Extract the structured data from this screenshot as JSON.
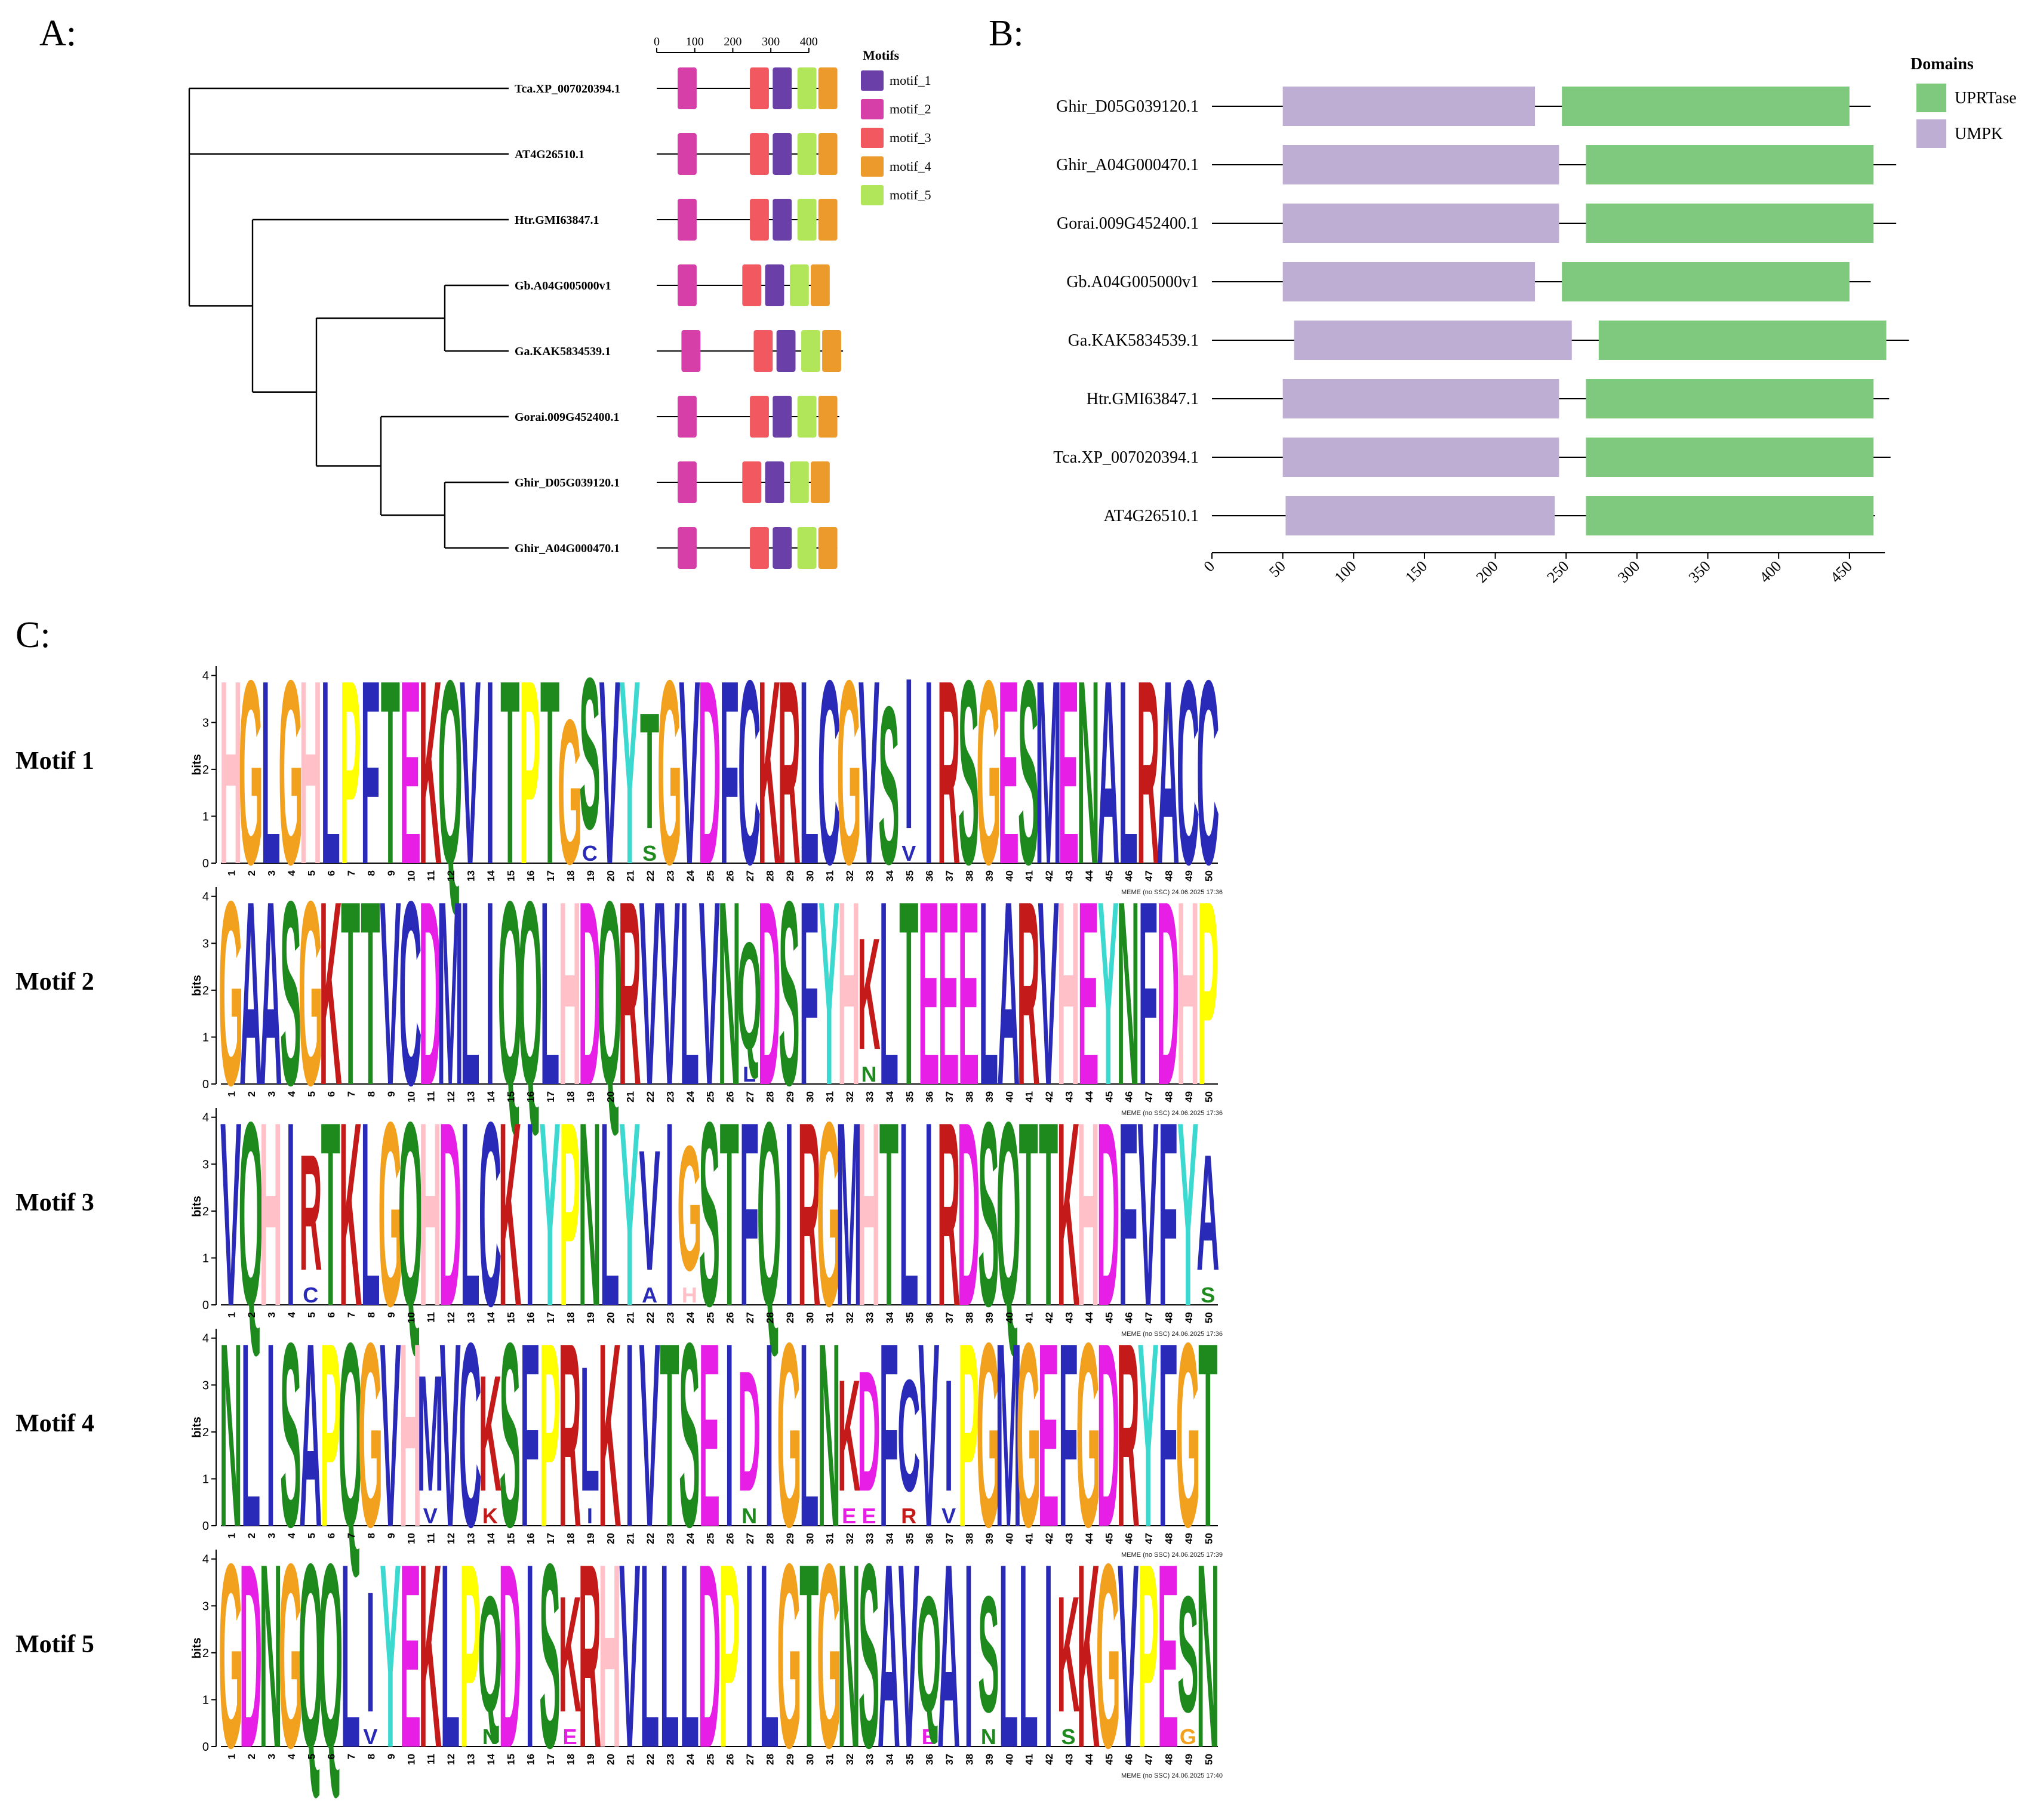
{
  "panels": {
    "a": {
      "label": "A:"
    },
    "b": {
      "label": "B:"
    },
    "c": {
      "label": "C:"
    }
  },
  "colors": {
    "motif_1": "#6a3fa8",
    "motif_2": "#d63fa8",
    "motif_3": "#f2585f",
    "motif_4": "#ec9a2c",
    "motif_5": "#b2e65a",
    "UPRTase": "#7fc97f",
    "UMPK": "#beaed4",
    "logo": {
      "A": "#2a2ab8",
      "C": "#2a2ab8",
      "D": "#e61ee6",
      "E": "#e61ee6",
      "F": "#2a2ab8",
      "G": "#f2a11e",
      "H": "#ffc0c8",
      "I": "#2a2ab8",
      "K": "#c41a1a",
      "L": "#2a2ab8",
      "M": "#2a2ab8",
      "N": "#1e8a1e",
      "P": "#ffff00",
      "Q": "#1e8a1e",
      "R": "#c41a1a",
      "S": "#1e8a1e",
      "T": "#1e8a1e",
      "V": "#2a2ab8",
      "W": "#2a2ab8",
      "Y": "#3bd9d0"
    }
  },
  "chart_data": [
    {
      "id": "motif-architecture",
      "type": "tree",
      "title": "A:",
      "scale_ticks": [
        0,
        100,
        200,
        300,
        400
      ],
      "legend_title": "Motifs",
      "legend": [
        "motif_1",
        "motif_2",
        "motif_3",
        "motif_4",
        "motif_5"
      ],
      "taxa": [
        {
          "name": "Tca.XP_007020394.1",
          "length": 460,
          "motifs": [
            {
              "m": "motif_2",
              "start": 55,
              "end": 105
            },
            {
              "m": "motif_3",
              "start": 245,
              "end": 295
            },
            {
              "m": "motif_1",
              "start": 305,
              "end": 355
            },
            {
              "m": "motif_5",
              "start": 370,
              "end": 420
            },
            {
              "m": "motif_4",
              "start": 425,
              "end": 475
            }
          ]
        },
        {
          "name": "AT4G26510.1",
          "length": 465,
          "motifs": [
            {
              "m": "motif_2",
              "start": 55,
              "end": 105
            },
            {
              "m": "motif_3",
              "start": 245,
              "end": 295
            },
            {
              "m": "motif_1",
              "start": 305,
              "end": 355
            },
            {
              "m": "motif_5",
              "start": 370,
              "end": 420
            },
            {
              "m": "motif_4",
              "start": 425,
              "end": 475
            }
          ]
        },
        {
          "name": "Htr.GMI63847.1",
          "length": 470,
          "motifs": [
            {
              "m": "motif_2",
              "start": 55,
              "end": 105
            },
            {
              "m": "motif_3",
              "start": 245,
              "end": 295
            },
            {
              "m": "motif_1",
              "start": 305,
              "end": 355
            },
            {
              "m": "motif_5",
              "start": 370,
              "end": 420
            },
            {
              "m": "motif_4",
              "start": 425,
              "end": 475
            }
          ]
        },
        {
          "name": "Gb.A04G005000v1",
          "length": 445,
          "motifs": [
            {
              "m": "motif_2",
              "start": 55,
              "end": 105
            },
            {
              "m": "motif_3",
              "start": 225,
              "end": 275
            },
            {
              "m": "motif_1",
              "start": 285,
              "end": 335
            },
            {
              "m": "motif_5",
              "start": 350,
              "end": 400
            },
            {
              "m": "motif_4",
              "start": 405,
              "end": 455
            }
          ]
        },
        {
          "name": "Ga.KAK5834539.1",
          "length": 490,
          "motifs": [
            {
              "m": "motif_2",
              "start": 65,
              "end": 115
            },
            {
              "m": "motif_3",
              "start": 255,
              "end": 305
            },
            {
              "m": "motif_1",
              "start": 315,
              "end": 365
            },
            {
              "m": "motif_5",
              "start": 380,
              "end": 430
            },
            {
              "m": "motif_4",
              "start": 435,
              "end": 485
            }
          ]
        },
        {
          "name": "Gorai.009G452400.1",
          "length": 480,
          "motifs": [
            {
              "m": "motif_2",
              "start": 55,
              "end": 105
            },
            {
              "m": "motif_3",
              "start": 245,
              "end": 295
            },
            {
              "m": "motif_1",
              "start": 305,
              "end": 355
            },
            {
              "m": "motif_5",
              "start": 370,
              "end": 420
            },
            {
              "m": "motif_4",
              "start": 425,
              "end": 475
            }
          ]
        },
        {
          "name": "Ghir_D05G039120.1",
          "length": 445,
          "motifs": [
            {
              "m": "motif_2",
              "start": 55,
              "end": 105
            },
            {
              "m": "motif_3",
              "start": 225,
              "end": 275
            },
            {
              "m": "motif_1",
              "start": 285,
              "end": 335
            },
            {
              "m": "motif_5",
              "start": 350,
              "end": 400
            },
            {
              "m": "motif_4",
              "start": 405,
              "end": 455
            }
          ]
        },
        {
          "name": "Ghir_A04G000470.1",
          "length": 475,
          "motifs": [
            {
              "m": "motif_2",
              "start": 55,
              "end": 105
            },
            {
              "m": "motif_3",
              "start": 245,
              "end": 295
            },
            {
              "m": "motif_1",
              "start": 305,
              "end": 355
            },
            {
              "m": "motif_5",
              "start": 370,
              "end": 420
            },
            {
              "m": "motif_4",
              "start": 425,
              "end": 475
            }
          ]
        }
      ]
    },
    {
      "id": "domain-architecture",
      "type": "bar",
      "title": "B:",
      "legend_title": "Domains",
      "legend": [
        "UPRTase",
        "UMPK"
      ],
      "xlim": [
        0,
        475
      ],
      "x_ticks": [
        0,
        50,
        100,
        150,
        200,
        250,
        300,
        350,
        400,
        450
      ],
      "proteins": [
        {
          "name": "Ghir_D05G039120.1",
          "length": 465,
          "domains": [
            {
              "d": "UMPK",
              "start": 50,
              "end": 228
            },
            {
              "d": "UPRTase",
              "start": 247,
              "end": 450
            }
          ]
        },
        {
          "name": "Ghir_A04G000470.1",
          "length": 483,
          "domains": [
            {
              "d": "UMPK",
              "start": 50,
              "end": 245
            },
            {
              "d": "UPRTase",
              "start": 264,
              "end": 467
            }
          ]
        },
        {
          "name": "Gorai.009G452400.1",
          "length": 483,
          "domains": [
            {
              "d": "UMPK",
              "start": 50,
              "end": 245
            },
            {
              "d": "UPRTase",
              "start": 264,
              "end": 467
            }
          ]
        },
        {
          "name": "Gb.A04G005000v1",
          "length": 465,
          "domains": [
            {
              "d": "UMPK",
              "start": 50,
              "end": 228
            },
            {
              "d": "UPRTase",
              "start": 247,
              "end": 450
            }
          ]
        },
        {
          "name": "Ga.KAK5834539.1",
          "length": 492,
          "domains": [
            {
              "d": "UMPK",
              "start": 58,
              "end": 254
            },
            {
              "d": "UPRTase",
              "start": 273,
              "end": 476
            }
          ]
        },
        {
          "name": "Htr.GMI63847.1",
          "length": 478,
          "domains": [
            {
              "d": "UMPK",
              "start": 50,
              "end": 245
            },
            {
              "d": "UPRTase",
              "start": 264,
              "end": 467
            }
          ]
        },
        {
          "name": "Tca.XP_007020394.1",
          "length": 479,
          "domains": [
            {
              "d": "UMPK",
              "start": 50,
              "end": 245
            },
            {
              "d": "UPRTase",
              "start": 264,
              "end": 467
            }
          ]
        },
        {
          "name": "AT4G26510.1",
          "length": 468,
          "domains": [
            {
              "d": "UMPK",
              "start": 52,
              "end": 242
            },
            {
              "d": "UPRTase",
              "start": 264,
              "end": 467
            }
          ]
        }
      ]
    },
    {
      "id": "motif-logos",
      "type": "logo",
      "title": "C:",
      "ylabel": "bits",
      "y_ticks": [
        0,
        1,
        2,
        3,
        4
      ],
      "positions": [
        1,
        2,
        3,
        4,
        5,
        6,
        7,
        8,
        9,
        10,
        11,
        12,
        13,
        14,
        15,
        16,
        17,
        18,
        19,
        20,
        21,
        22,
        23,
        24,
        25,
        26,
        27,
        28,
        29,
        30,
        31,
        32,
        33,
        34,
        35,
        36,
        37,
        38,
        39,
        40,
        41,
        42,
        43,
        44,
        45,
        46,
        47,
        48,
        49,
        50
      ],
      "motifs": [
        {
          "name": "Motif 1",
          "footer": "MEME (no SSC) 24.06.2025 17:36",
          "sequence": "HGLGHLPFTEKQVITPTGSVYTGVDFCKRLCGVSIIRSGESMENALRACC",
          "heights": [
            4.2,
            4.2,
            4.2,
            4.2,
            4.2,
            4.2,
            4.2,
            4.2,
            4.2,
            4.2,
            4.2,
            4.2,
            4.2,
            4.2,
            4.2,
            4.2,
            4.2,
            3.3,
            4.2,
            4.2,
            4.2,
            3.4,
            4.2,
            4.2,
            4.2,
            4.2,
            4.2,
            4.2,
            4.2,
            4.2,
            4.2,
            4.2,
            4.2,
            3.6,
            4.2,
            4.2,
            4.2,
            4.2,
            4.2,
            4.2,
            4.2,
            4.2,
            4.2,
            4.2,
            4.2,
            4.2,
            4.2,
            4.2,
            4.2,
            4.2
          ],
          "minor": [
            {
              "pos": 19,
              "letter": "C"
            },
            {
              "pos": 22,
              "letter": "S"
            },
            {
              "pos": 35,
              "letter": "V"
            }
          ]
        },
        {
          "name": "Motif 2",
          "footer": "MEME (no SSC) 24.06.2025 17:36",
          "sequence": "GAASGKTTVCDMLIQQLHDQRVVLVNQDSFYHKLTEEELARVHEYNFDHP",
          "heights": [
            4.2,
            4.2,
            4.2,
            4.2,
            4.2,
            4.2,
            4.2,
            4.2,
            4.2,
            4.2,
            4.2,
            4.2,
            4.2,
            4.2,
            4.2,
            4.2,
            4.2,
            4.2,
            4.2,
            4.2,
            4.2,
            4.2,
            4.2,
            4.2,
            4.2,
            4.2,
            3.2,
            4.2,
            4.2,
            4.2,
            4.2,
            4.2,
            3.3,
            4.2,
            4.2,
            4.2,
            4.2,
            4.2,
            4.2,
            4.2,
            4.2,
            4.2,
            4.2,
            4.2,
            4.2,
            4.2,
            4.2,
            4.2,
            4.2,
            4.2
          ],
          "minor": [
            {
              "pos": 27,
              "letter": "L"
            },
            {
              "pos": 33,
              "letter": "N"
            }
          ]
        },
        {
          "name": "Motif 3",
          "footer": "MEME (no SSC) 24.06.2025 17:36",
          "sequence": "VQHIRTKLGQHDLCKIYPNLYVIGSTFQIRGMHTLIRDSQTTKHDFVFYA",
          "heights": [
            4.2,
            4.2,
            4.2,
            4.2,
            3.4,
            4.2,
            4.2,
            4.2,
            4.2,
            4.2,
            4.2,
            4.2,
            4.2,
            4.2,
            4.2,
            4.2,
            4.2,
            4.2,
            4.2,
            4.2,
            4.2,
            3.5,
            4.2,
            3.6,
            4.2,
            4.2,
            4.2,
            4.2,
            4.2,
            4.2,
            4.2,
            4.2,
            4.2,
            4.2,
            4.2,
            4.2,
            4.2,
            4.2,
            4.2,
            4.2,
            4.2,
            4.2,
            4.2,
            4.2,
            4.2,
            4.2,
            4.2,
            4.2,
            4.2,
            3.4
          ],
          "minor": [
            {
              "pos": 5,
              "letter": "C"
            },
            {
              "pos": 22,
              "letter": "A"
            },
            {
              "pos": 24,
              "letter": "H"
            },
            {
              "pos": 50,
              "letter": "S"
            }
          ]
        },
        {
          "name": "Motif 4",
          "footer": "MEME (no SSC) 24.06.2025 17:39",
          "sequence": "NLISAPQGVHMVCKSFPRLKIVTSEIDIGLNKDFCVIPGMGEFGDRYFGT",
          "heights": [
            4.2,
            4.2,
            4.2,
            4.2,
            4.2,
            4.2,
            4.2,
            4.2,
            4.2,
            4.2,
            3.4,
            4.2,
            4.2,
            3.4,
            4.2,
            4.2,
            4.2,
            4.2,
            3.6,
            4.2,
            4.2,
            4.2,
            4.2,
            4.2,
            4.2,
            4.2,
            3.5,
            4.2,
            4.2,
            4.2,
            4.2,
            3.3,
            3.5,
            4.2,
            3.3,
            4.2,
            3.3,
            4.2,
            4.2,
            4.2,
            4.2,
            4.2,
            4.2,
            4.2,
            4.2,
            4.2,
            4.2,
            4.2,
            4.2,
            4.2
          ],
          "minor": [
            {
              "pos": 11,
              "letter": "V"
            },
            {
              "pos": 14,
              "letter": "K"
            },
            {
              "pos": 19,
              "letter": "I"
            },
            {
              "pos": 27,
              "letter": "N"
            },
            {
              "pos": 32,
              "letter": "E"
            },
            {
              "pos": 33,
              "letter": "E"
            },
            {
              "pos": 35,
              "letter": "R"
            },
            {
              "pos": 37,
              "letter": "V"
            }
          ]
        },
        {
          "name": "Motif 5",
          "footer": "MEME (no SSC) 24.06.2025 17:40",
          "sequence": "GDNGQQLIYEKLPQDISKRHVLLLDPILGTGNSAVQAISLLIKKGVPESN",
          "heights": [
            4.2,
            4.2,
            4.2,
            4.2,
            4.2,
            4.2,
            4.2,
            3.5,
            4.2,
            4.2,
            4.2,
            4.2,
            4.2,
            3.4,
            4.2,
            4.2,
            4.2,
            3.4,
            4.2,
            4.2,
            4.2,
            4.2,
            4.2,
            4.2,
            4.2,
            4.2,
            4.2,
            4.2,
            4.2,
            4.2,
            4.2,
            4.2,
            4.2,
            4.2,
            4.2,
            3.4,
            4.2,
            4.2,
            3.4,
            4.2,
            4.2,
            4.2,
            3.4,
            4.2,
            4.2,
            4.2,
            4.2,
            4.2,
            3.4,
            4.2
          ],
          "minor": [
            {
              "pos": 8,
              "letter": "V"
            },
            {
              "pos": 14,
              "letter": "N"
            },
            {
              "pos": 18,
              "letter": "E"
            },
            {
              "pos": 36,
              "letter": "E"
            },
            {
              "pos": 39,
              "letter": "N"
            },
            {
              "pos": 43,
              "letter": "S"
            },
            {
              "pos": 49,
              "letter": "G"
            }
          ]
        }
      ]
    }
  ]
}
